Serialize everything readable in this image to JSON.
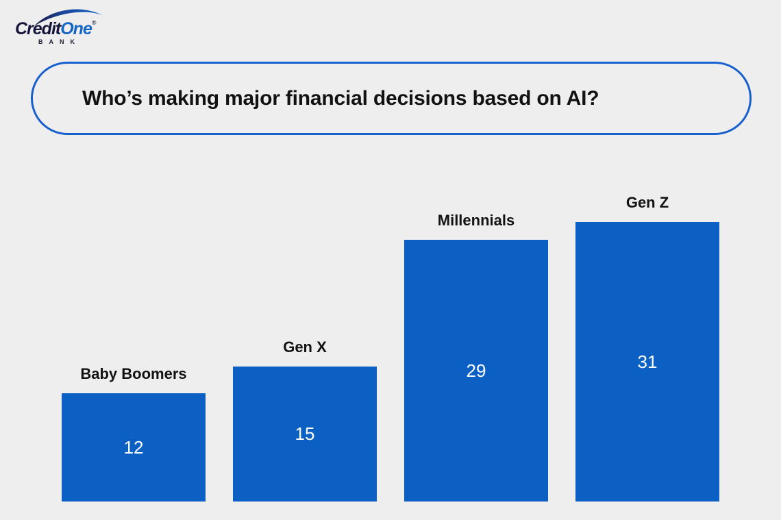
{
  "logo": {
    "brand_credit": "Credit",
    "brand_one": "One",
    "registered": "®",
    "bank": "BANK"
  },
  "header": {
    "title": "Who’s making major financial decisions based on AI?"
  },
  "colors": {
    "background": "#EEEEEE",
    "bar_blue": "#0C60C4",
    "pill_border_blue": "#1760CE",
    "label_dark": "#121212",
    "value_white": "#FFFFFF",
    "logo_dark": "#15153B",
    "logo_blue": "#1565C4"
  },
  "chart_data": {
    "type": "bar",
    "title": "Who’s making major financial decisions based on AI?",
    "categories": [
      "Baby Boomers",
      "Gen X",
      "Millennials",
      "Gen Z"
    ],
    "values": [
      12,
      15,
      29,
      31
    ],
    "xlabel": "",
    "ylabel": "",
    "ylim": [
      0,
      31
    ],
    "grid": false,
    "legend": false,
    "bar_color": "#0C60C4",
    "category_label_position": "above-bar",
    "value_label_position": "inside-center"
  }
}
